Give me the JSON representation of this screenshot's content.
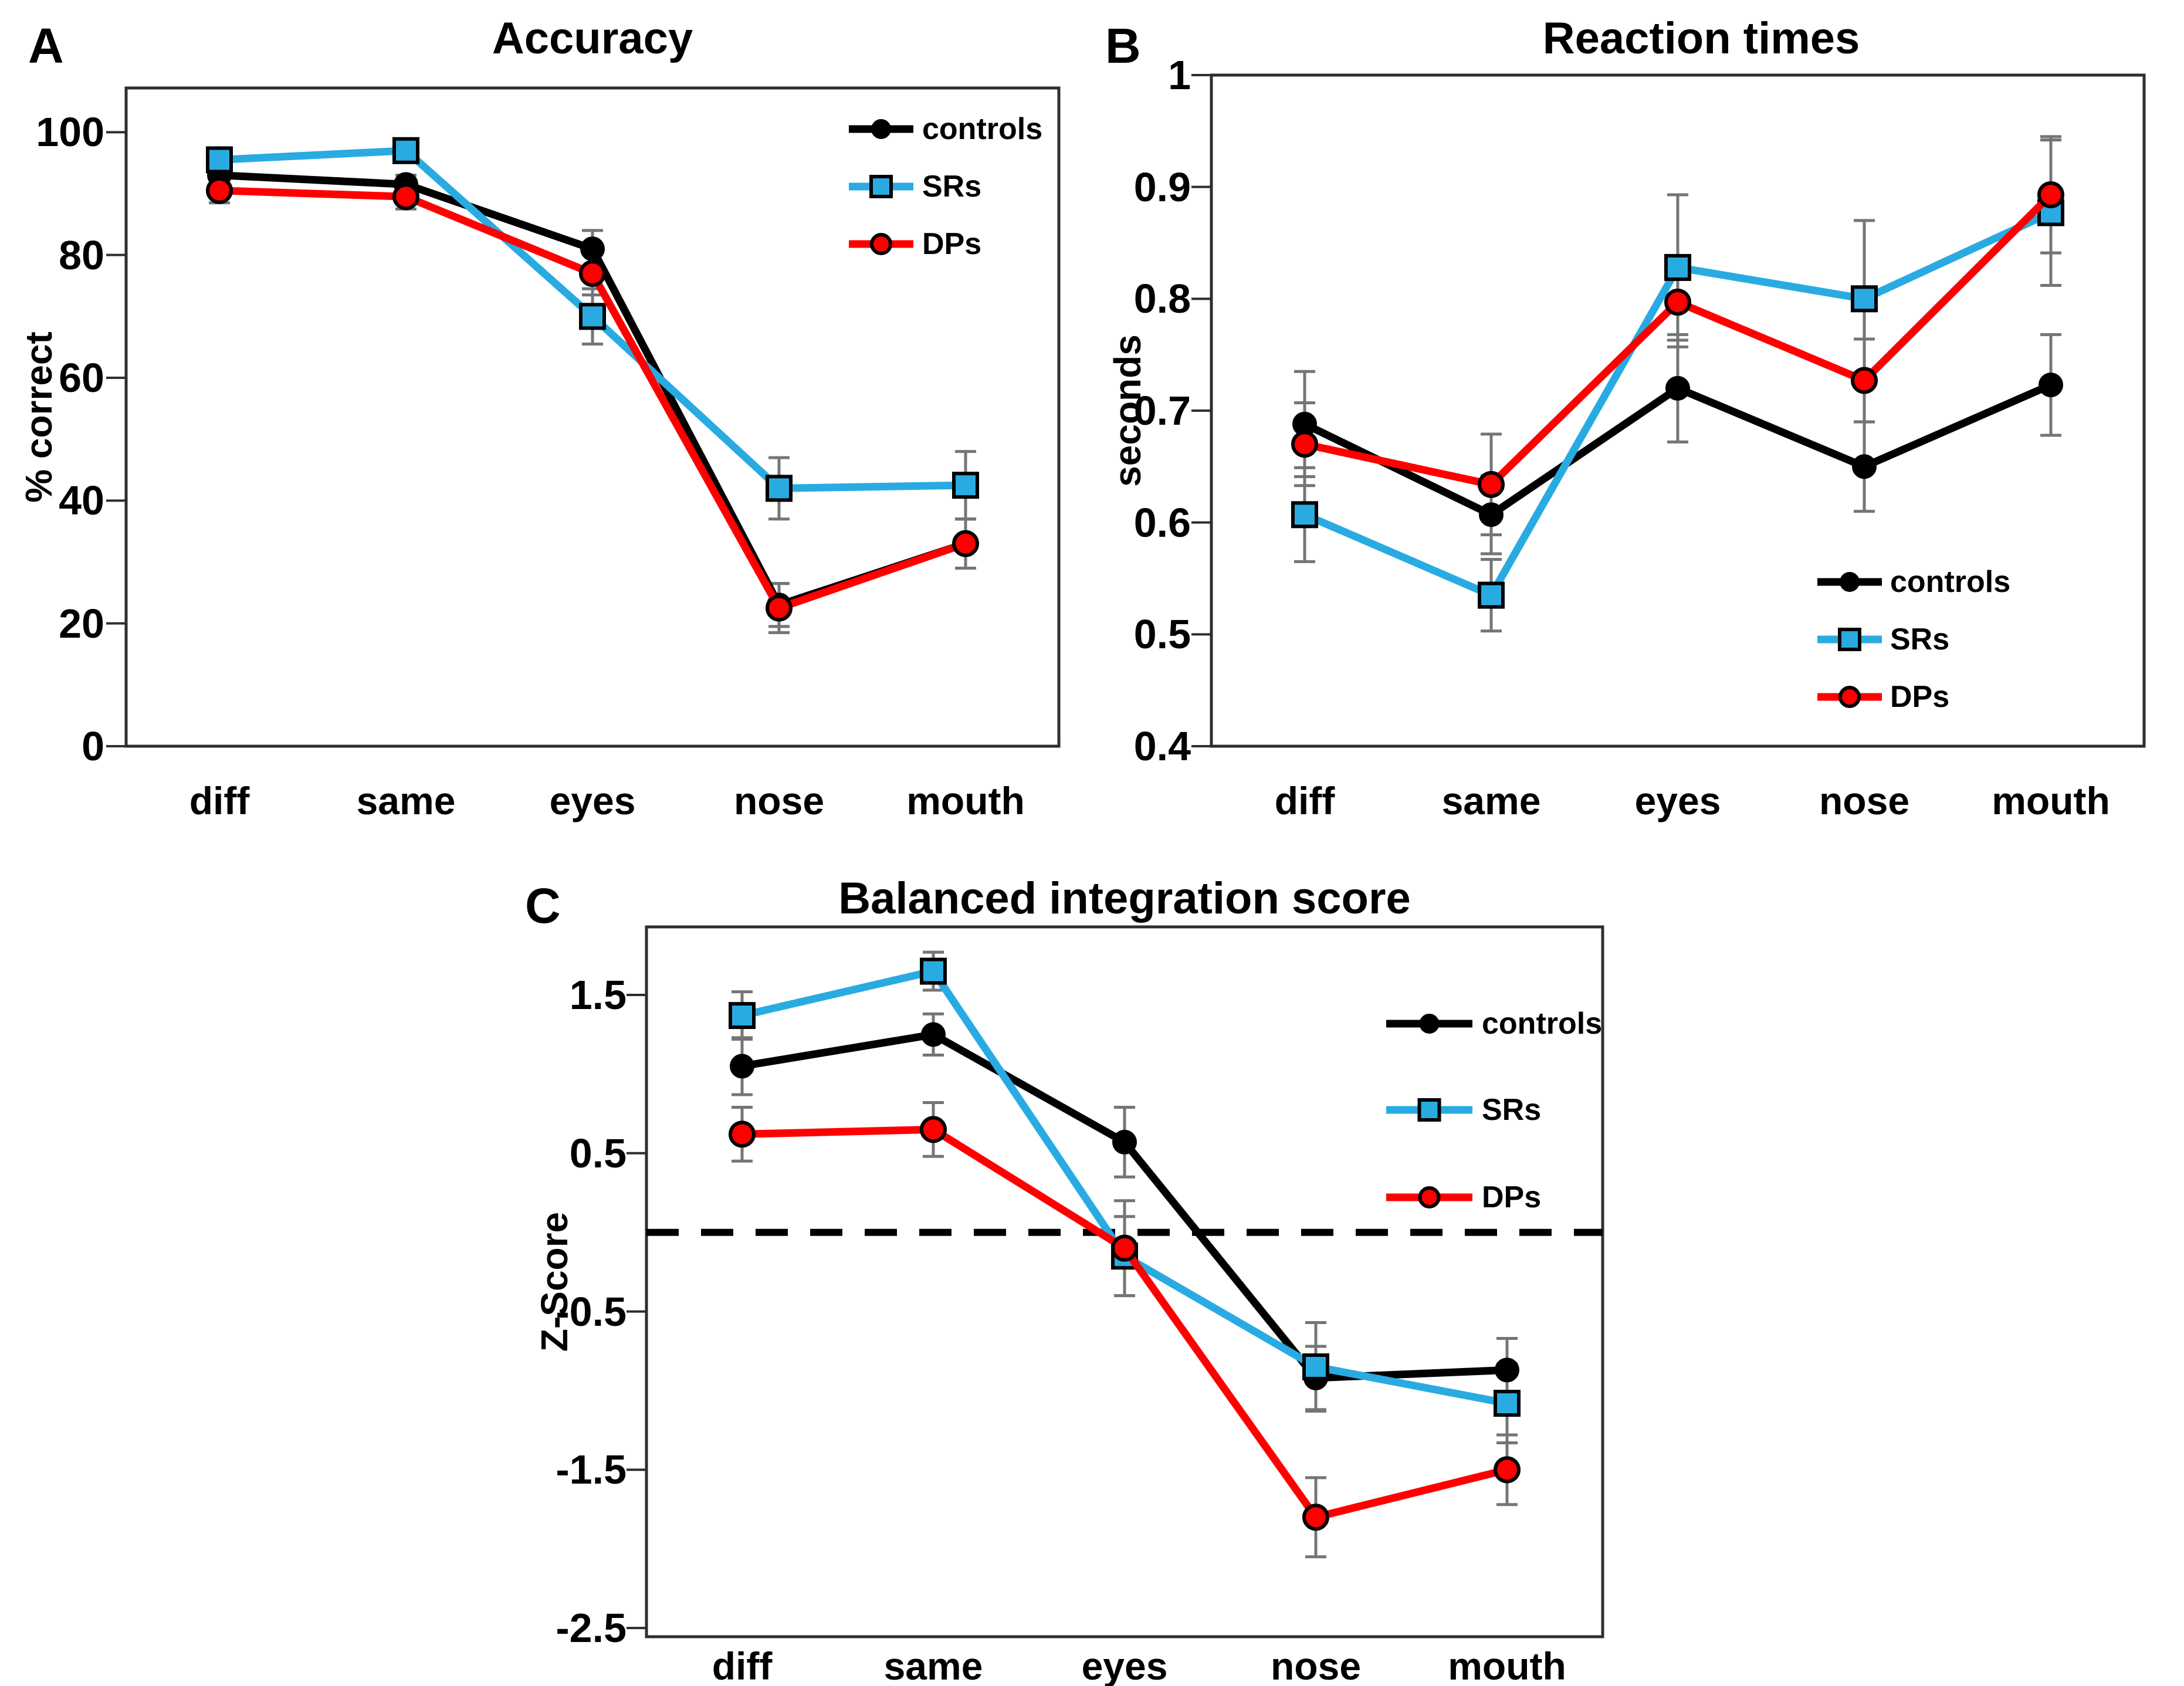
{
  "figure": {
    "colors": {
      "controls": "#000000",
      "SRs": "#29ABE2",
      "DPs": "#FF0000",
      "error_bar": "#757575",
      "axis": "#2E2E2E"
    }
  },
  "chart_data": [
    {
      "panel": "A",
      "type": "line",
      "title": "Accuracy",
      "ylabel": "% correct",
      "categories": [
        "diff",
        "same",
        "eyes",
        "nose",
        "mouth"
      ],
      "yticks": [
        100,
        80,
        60,
        40,
        20,
        0
      ],
      "ytick_labels": [
        "100",
        "80",
        "60",
        "40",
        "20",
        "0"
      ],
      "ylim": [
        0,
        107
      ],
      "grid": false,
      "legend_position": "top-right",
      "series": [
        {
          "name": "controls",
          "color": "#000000",
          "marker": "circle",
          "values": [
            93,
            91.5,
            81,
            23,
            33
          ],
          "errors": [
            1.5,
            1.5,
            3,
            3.5,
            4
          ]
        },
        {
          "name": "SRs",
          "color": "#29ABE2",
          "marker": "square",
          "values": [
            95.5,
            97,
            70,
            42,
            42.5
          ],
          "errors": [
            1.5,
            1.5,
            4.5,
            5,
            5.5
          ]
        },
        {
          "name": "DPs",
          "color": "#FF0000",
          "marker": "circle",
          "values": [
            90.5,
            89.5,
            77,
            22.5,
            33
          ],
          "errors": [
            2,
            2,
            3.5,
            4,
            4
          ]
        }
      ]
    },
    {
      "panel": "B",
      "type": "line",
      "title": "Reaction times",
      "ylabel": "seconds",
      "categories": [
        "diff",
        "same",
        "eyes",
        "nose",
        "mouth"
      ],
      "yticks": [
        1,
        0.9,
        0.8,
        0.7,
        0.6,
        0.5,
        0.4
      ],
      "ytick_labels": [
        "1",
        "0.9",
        "0.8",
        "0.7",
        "0.6",
        "0.5",
        "0.4"
      ],
      "ylim": [
        0.4,
        1.0
      ],
      "grid": false,
      "legend_position": "bottom-right",
      "series": [
        {
          "name": "controls",
          "color": "#000000",
          "marker": "circle",
          "values": [
            0.688,
            0.607,
            0.72,
            0.65,
            0.723
          ],
          "errors": [
            0.047,
            0.035,
            0.048,
            0.04,
            0.045
          ]
        },
        {
          "name": "SRs",
          "color": "#29ABE2",
          "marker": "square",
          "values": [
            0.607,
            0.535,
            0.828,
            0.8,
            0.877
          ],
          "errors": [
            0.042,
            0.032,
            0.065,
            0.07,
            0.065
          ]
        },
        {
          "name": "DPs",
          "color": "#FF0000",
          "marker": "circle",
          "values": [
            0.67,
            0.634,
            0.797,
            0.727,
            0.893
          ],
          "errors": [
            0.037,
            0.045,
            0.04,
            0.037,
            0.052
          ]
        }
      ]
    },
    {
      "panel": "C",
      "type": "line",
      "title": "Balanced integration score",
      "ylabel": "Z-Score",
      "categories": [
        "diff",
        "same",
        "eyes",
        "nose",
        "mouth"
      ],
      "yticks": [
        1.5,
        0.5,
        -0.5,
        -1.5,
        -2.5
      ],
      "ytick_labels": [
        "1.5",
        "0.5",
        "-0.5",
        "-1.5",
        "-2.5"
      ],
      "ylim": [
        -2.5,
        1.9
      ],
      "grid": false,
      "zero_line_dashed": true,
      "legend_position": "top-right",
      "series": [
        {
          "name": "controls",
          "color": "#000000",
          "marker": "circle",
          "values": [
            1.05,
            1.25,
            0.57,
            -0.92,
            -0.87
          ],
          "errors": [
            0.18,
            0.13,
            0.22,
            0.2,
            0.2
          ]
        },
        {
          "name": "SRs",
          "color": "#29ABE2",
          "marker": "square",
          "values": [
            1.37,
            1.65,
            -0.15,
            -0.85,
            -1.08
          ],
          "errors": [
            0.15,
            0.12,
            0.25,
            0.28,
            0.25
          ]
        },
        {
          "name": "DPs",
          "color": "#FF0000",
          "marker": "circle",
          "values": [
            0.62,
            0.65,
            -0.1,
            -1.8,
            -1.5
          ],
          "errors": [
            0.17,
            0.17,
            0.3,
            0.25,
            0.22
          ]
        }
      ]
    }
  ]
}
